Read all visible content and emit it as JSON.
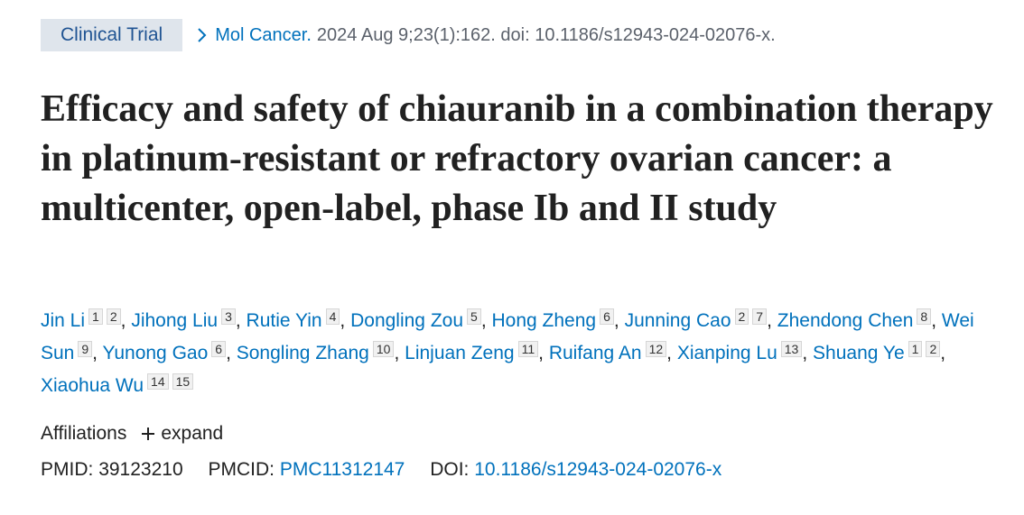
{
  "badge": "Clinical Trial",
  "citation": {
    "journal": "Mol Cancer.",
    "details": "2024 Aug 9;23(1):162. doi: 10.1186/s12943-024-02076-x."
  },
  "title": "Efficacy and safety of chiauranib in a combination therapy in platinum-resistant or refractory ovarian cancer: a multicenter, open-label, phase Ib and II study",
  "authors": {
    "separator": ",",
    "list": [
      {
        "name": "Jin Li",
        "affiliations": [
          "1",
          "2"
        ]
      },
      {
        "name": "Jihong Liu",
        "affiliations": [
          "3"
        ]
      },
      {
        "name": "Rutie Yin",
        "affiliations": [
          "4"
        ]
      },
      {
        "name": "Dongling Zou",
        "affiliations": [
          "5"
        ]
      },
      {
        "name": "Hong Zheng",
        "affiliations": [
          "6"
        ]
      },
      {
        "name": "Junning Cao",
        "affiliations": [
          "2",
          "7"
        ]
      },
      {
        "name": "Zhendong Chen",
        "affiliations": [
          "8"
        ]
      },
      {
        "name": "Wei Sun",
        "affiliations": [
          "9"
        ]
      },
      {
        "name": "Yunong Gao",
        "affiliations": [
          "6"
        ]
      },
      {
        "name": "Songling Zhang",
        "affiliations": [
          "10"
        ]
      },
      {
        "name": "Linjuan Zeng",
        "affiliations": [
          "11"
        ]
      },
      {
        "name": "Ruifang An",
        "affiliations": [
          "12"
        ]
      },
      {
        "name": "Xianping Lu",
        "affiliations": [
          "13"
        ]
      },
      {
        "name": "Shuang Ye",
        "affiliations": [
          "1",
          "2"
        ]
      },
      {
        "name": "Xiaohua Wu",
        "affiliations": [
          "14",
          "15"
        ]
      }
    ]
  },
  "affiliations": {
    "label": "Affiliations",
    "toggle": "expand"
  },
  "identifiers": {
    "pmid_label": "PMID:",
    "pmid": "39123210",
    "pmcid_label": "PMCID:",
    "pmcid": "PMC11312147",
    "doi_label": "DOI:",
    "doi": "10.1186/s12943-024-02076-x"
  }
}
